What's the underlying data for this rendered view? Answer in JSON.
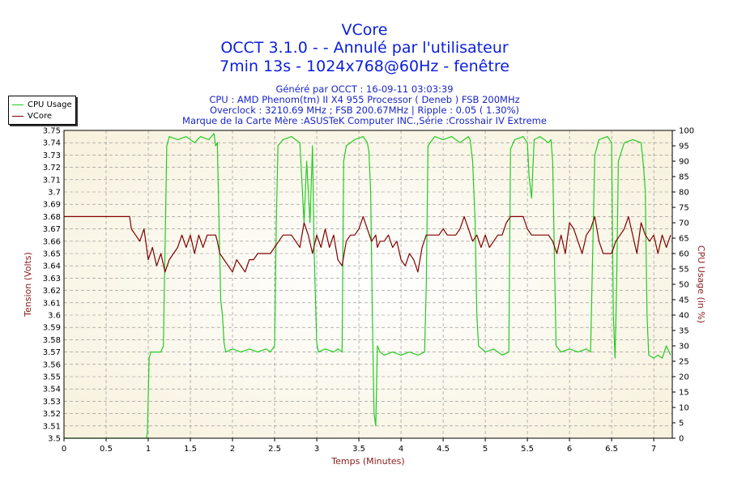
{
  "titles": {
    "line1": "VCore",
    "line2": "OCCT 3.1.0 -  - Annulé par l'utilisateur",
    "line3": "7min 13s - 1024x768@60Hz - fenêtre"
  },
  "info": {
    "generated": "Généré par OCCT : 16-09-11 03:03:39",
    "cpu": "CPU : AMD Phenom(tm) II X4 955 Processor ( Deneb ) FSB 200MHz",
    "overclock": "Overclock : 3210.69 MHz ; FSB 200.67MHz | Ripple : 0.05 ( 1.30%)",
    "motherboard": "Marque de la Carte Mère :ASUSTeK Computer INC.,Série :Crosshair IV Extreme"
  },
  "legend": [
    {
      "label": "CPU Usage",
      "color": "#22cc22"
    },
    {
      "label": "VCore",
      "color": "#800000"
    }
  ],
  "chart_data": {
    "type": "line",
    "xlabel": "Temps (Minutes)",
    "ylabel_left": "Tension (Volts)",
    "ylabel_right": "CPU Usage (in %)",
    "xlim": [
      0,
      7.22
    ],
    "ylim_left": [
      3.5,
      3.75
    ],
    "ylim_right": [
      0,
      100
    ],
    "x_ticks": [
      "0",
      "0.5",
      "1",
      "1.5",
      "2",
      "2.5",
      "3",
      "3.5",
      "4",
      "4.5",
      "5",
      "5.5",
      "6",
      "6.5",
      "7"
    ],
    "y_left_ticks": [
      "3.5",
      "3.51",
      "3.52",
      "3.53",
      "3.54",
      "3.55",
      "3.56",
      "3.57",
      "3.58",
      "3.59",
      "3.6",
      "3.61",
      "3.62",
      "3.63",
      "3.64",
      "3.65",
      "3.66",
      "3.67",
      "3.68",
      "3.69",
      "3.7",
      "3.71",
      "3.72",
      "3.73",
      "3.74",
      "3.75"
    ],
    "y_right_ticks": [
      "0",
      "5",
      "10",
      "15",
      "20",
      "25",
      "30",
      "35",
      "40",
      "45",
      "50",
      "55",
      "60",
      "65",
      "70",
      "75",
      "80",
      "85",
      "90",
      "95",
      "100"
    ],
    "grid": true,
    "legend_position": "top-left",
    "series": [
      {
        "name": "CPU Usage",
        "axis": "right",
        "color": "#22cc22",
        "points": [
          [
            0,
            0
          ],
          [
            0.98,
            0
          ],
          [
            0.99,
            2
          ],
          [
            1.01,
            26
          ],
          [
            1.03,
            28
          ],
          [
            1.15,
            28
          ],
          [
            1.18,
            30
          ],
          [
            1.22,
            95
          ],
          [
            1.25,
            98
          ],
          [
            1.35,
            97
          ],
          [
            1.45,
            98
          ],
          [
            1.55,
            96
          ],
          [
            1.62,
            98
          ],
          [
            1.72,
            97
          ],
          [
            1.78,
            99
          ],
          [
            1.8,
            95
          ],
          [
            1.82,
            96
          ],
          [
            1.84,
            70
          ],
          [
            1.86,
            45
          ],
          [
            1.88,
            40
          ],
          [
            1.9,
            31
          ],
          [
            1.92,
            28
          ],
          [
            2.0,
            29
          ],
          [
            2.1,
            28
          ],
          [
            2.2,
            29
          ],
          [
            2.3,
            28
          ],
          [
            2.4,
            29
          ],
          [
            2.45,
            28
          ],
          [
            2.5,
            30
          ],
          [
            2.52,
            70
          ],
          [
            2.54,
            95
          ],
          [
            2.6,
            97
          ],
          [
            2.7,
            98
          ],
          [
            2.8,
            96
          ],
          [
            2.85,
            70
          ],
          [
            2.88,
            90
          ],
          [
            2.92,
            70
          ],
          [
            2.95,
            95
          ],
          [
            2.97,
            60
          ],
          [
            3.0,
            31
          ],
          [
            3.02,
            28
          ],
          [
            3.1,
            29
          ],
          [
            3.2,
            28
          ],
          [
            3.25,
            29
          ],
          [
            3.3,
            28
          ],
          [
            3.32,
            90
          ],
          [
            3.35,
            95
          ],
          [
            3.45,
            97
          ],
          [
            3.55,
            98
          ],
          [
            3.6,
            96
          ],
          [
            3.62,
            93
          ],
          [
            3.64,
            80
          ],
          [
            3.66,
            40
          ],
          [
            3.68,
            8
          ],
          [
            3.7,
            4
          ],
          [
            3.72,
            30
          ],
          [
            3.75,
            28
          ],
          [
            3.8,
            27
          ],
          [
            3.9,
            28
          ],
          [
            4.0,
            27
          ],
          [
            4.1,
            28
          ],
          [
            4.2,
            27
          ],
          [
            4.28,
            28
          ],
          [
            4.3,
            50
          ],
          [
            4.32,
            95
          ],
          [
            4.4,
            98
          ],
          [
            4.5,
            97
          ],
          [
            4.6,
            98
          ],
          [
            4.7,
            96
          ],
          [
            4.8,
            98
          ],
          [
            4.82,
            97
          ],
          [
            4.85,
            90
          ],
          [
            4.88,
            70
          ],
          [
            4.9,
            40
          ],
          [
            4.92,
            30
          ],
          [
            5.0,
            28
          ],
          [
            5.1,
            29
          ],
          [
            5.2,
            27
          ],
          [
            5.28,
            28
          ],
          [
            5.3,
            94
          ],
          [
            5.35,
            97
          ],
          [
            5.45,
            98
          ],
          [
            5.5,
            96
          ],
          [
            5.52,
            85
          ],
          [
            5.55,
            78
          ],
          [
            5.58,
            97
          ],
          [
            5.65,
            98
          ],
          [
            5.75,
            96
          ],
          [
            5.78,
            97
          ],
          [
            5.8,
            90
          ],
          [
            5.82,
            60
          ],
          [
            5.84,
            30
          ],
          [
            5.9,
            28
          ],
          [
            6.0,
            29
          ],
          [
            6.1,
            28
          ],
          [
            6.2,
            29
          ],
          [
            6.25,
            28
          ],
          [
            6.3,
            92
          ],
          [
            6.35,
            97
          ],
          [
            6.45,
            98
          ],
          [
            6.5,
            96
          ],
          [
            6.52,
            40
          ],
          [
            6.54,
            26
          ],
          [
            6.56,
            50
          ],
          [
            6.58,
            90
          ],
          [
            6.65,
            96
          ],
          [
            6.75,
            97
          ],
          [
            6.85,
            96
          ],
          [
            6.88,
            88
          ],
          [
            6.9,
            80
          ],
          [
            6.92,
            40
          ],
          [
            6.94,
            27
          ],
          [
            7.0,
            26
          ],
          [
            7.05,
            27
          ],
          [
            7.1,
            26
          ],
          [
            7.15,
            30
          ],
          [
            7.2,
            27
          ]
        ]
      },
      {
        "name": "VCore",
        "axis": "left",
        "color": "#800000",
        "points": [
          [
            0,
            3.68
          ],
          [
            0.78,
            3.68
          ],
          [
            0.8,
            3.67
          ],
          [
            0.85,
            3.665
          ],
          [
            0.9,
            3.66
          ],
          [
            0.95,
            3.67
          ],
          [
            1.0,
            3.645
          ],
          [
            1.05,
            3.655
          ],
          [
            1.1,
            3.64
          ],
          [
            1.15,
            3.65
          ],
          [
            1.2,
            3.635
          ],
          [
            1.25,
            3.645
          ],
          [
            1.3,
            3.65
          ],
          [
            1.35,
            3.655
          ],
          [
            1.4,
            3.665
          ],
          [
            1.45,
            3.655
          ],
          [
            1.5,
            3.665
          ],
          [
            1.55,
            3.65
          ],
          [
            1.6,
            3.665
          ],
          [
            1.65,
            3.655
          ],
          [
            1.7,
            3.665
          ],
          [
            1.8,
            3.665
          ],
          [
            1.82,
            3.66
          ],
          [
            1.85,
            3.65
          ],
          [
            1.9,
            3.645
          ],
          [
            1.95,
            3.64
          ],
          [
            2.0,
            3.635
          ],
          [
            2.05,
            3.645
          ],
          [
            2.1,
            3.64
          ],
          [
            2.15,
            3.635
          ],
          [
            2.2,
            3.645
          ],
          [
            2.25,
            3.645
          ],
          [
            2.3,
            3.65
          ],
          [
            2.4,
            3.65
          ],
          [
            2.45,
            3.65
          ],
          [
            2.5,
            3.655
          ],
          [
            2.55,
            3.66
          ],
          [
            2.6,
            3.665
          ],
          [
            2.7,
            3.665
          ],
          [
            2.75,
            3.66
          ],
          [
            2.8,
            3.655
          ],
          [
            2.85,
            3.675
          ],
          [
            2.9,
            3.665
          ],
          [
            2.95,
            3.65
          ],
          [
            3.0,
            3.665
          ],
          [
            3.05,
            3.655
          ],
          [
            3.1,
            3.67
          ],
          [
            3.15,
            3.655
          ],
          [
            3.2,
            3.665
          ],
          [
            3.25,
            3.645
          ],
          [
            3.3,
            3.64
          ],
          [
            3.35,
            3.66
          ],
          [
            3.4,
            3.665
          ],
          [
            3.45,
            3.665
          ],
          [
            3.5,
            3.67
          ],
          [
            3.55,
            3.68
          ],
          [
            3.6,
            3.67
          ],
          [
            3.65,
            3.66
          ],
          [
            3.7,
            3.665
          ],
          [
            3.72,
            3.655
          ],
          [
            3.75,
            3.66
          ],
          [
            3.8,
            3.66
          ],
          [
            3.85,
            3.665
          ],
          [
            3.9,
            3.655
          ],
          [
            3.95,
            3.66
          ],
          [
            4.0,
            3.645
          ],
          [
            4.05,
            3.64
          ],
          [
            4.1,
            3.65
          ],
          [
            4.15,
            3.645
          ],
          [
            4.2,
            3.635
          ],
          [
            4.25,
            3.655
          ],
          [
            4.3,
            3.665
          ],
          [
            4.35,
            3.665
          ],
          [
            4.45,
            3.665
          ],
          [
            4.5,
            3.67
          ],
          [
            4.55,
            3.665
          ],
          [
            4.65,
            3.665
          ],
          [
            4.7,
            3.67
          ],
          [
            4.75,
            3.68
          ],
          [
            4.8,
            3.67
          ],
          [
            4.85,
            3.66
          ],
          [
            4.9,
            3.665
          ],
          [
            4.95,
            3.655
          ],
          [
            5.0,
            3.665
          ],
          [
            5.05,
            3.655
          ],
          [
            5.1,
            3.66
          ],
          [
            5.15,
            3.665
          ],
          [
            5.2,
            3.665
          ],
          [
            5.25,
            3.675
          ],
          [
            5.3,
            3.68
          ],
          [
            5.35,
            3.68
          ],
          [
            5.45,
            3.68
          ],
          [
            5.5,
            3.67
          ],
          [
            5.55,
            3.665
          ],
          [
            5.65,
            3.665
          ],
          [
            5.7,
            3.665
          ],
          [
            5.75,
            3.665
          ],
          [
            5.8,
            3.66
          ],
          [
            5.85,
            3.65
          ],
          [
            5.9,
            3.665
          ],
          [
            5.95,
            3.65
          ],
          [
            6.0,
            3.675
          ],
          [
            6.05,
            3.67
          ],
          [
            6.1,
            3.66
          ],
          [
            6.15,
            3.65
          ],
          [
            6.2,
            3.665
          ],
          [
            6.25,
            3.67
          ],
          [
            6.3,
            3.68
          ],
          [
            6.35,
            3.66
          ],
          [
            6.4,
            3.65
          ],
          [
            6.45,
            3.65
          ],
          [
            6.5,
            3.65
          ],
          [
            6.55,
            3.66
          ],
          [
            6.6,
            3.665
          ],
          [
            6.65,
            3.67
          ],
          [
            6.7,
            3.68
          ],
          [
            6.75,
            3.665
          ],
          [
            6.8,
            3.65
          ],
          [
            6.85,
            3.675
          ],
          [
            6.9,
            3.665
          ],
          [
            6.95,
            3.66
          ],
          [
            7.0,
            3.665
          ],
          [
            7.05,
            3.65
          ],
          [
            7.1,
            3.665
          ],
          [
            7.15,
            3.655
          ],
          [
            7.2,
            3.665
          ]
        ]
      }
    ]
  }
}
